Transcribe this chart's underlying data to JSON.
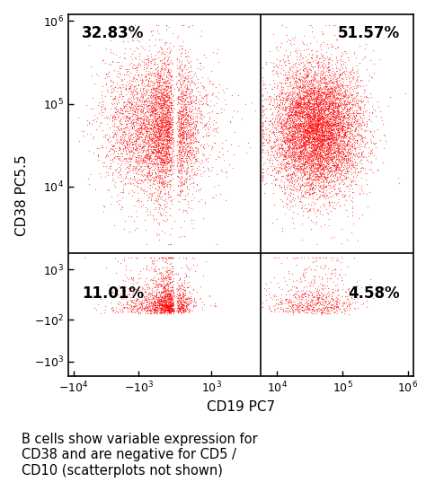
{
  "xlabel": "CD19 PC7",
  "ylabel": "CD38 PC5.5",
  "dot_color": "#FF0000",
  "dot_size": 0.8,
  "dot_alpha": 0.6,
  "quadrant_line_x": 5623.0,
  "quadrant_line_y": 1585.0,
  "xmin": -10000,
  "xmax": 1500000,
  "ymin": -1200,
  "ymax": 1500000,
  "q1_label": "32.83%",
  "q2_label": "51.57%",
  "q3_label": "11.01%",
  "q4_label": "4.58%",
  "caption": "B cells show variable expression for\nCD38 and are negative for CD5 /\nCD10 (scatterplots not shown)",
  "n_points": 15000,
  "seed": 42,
  "background": "#FFFFFF"
}
